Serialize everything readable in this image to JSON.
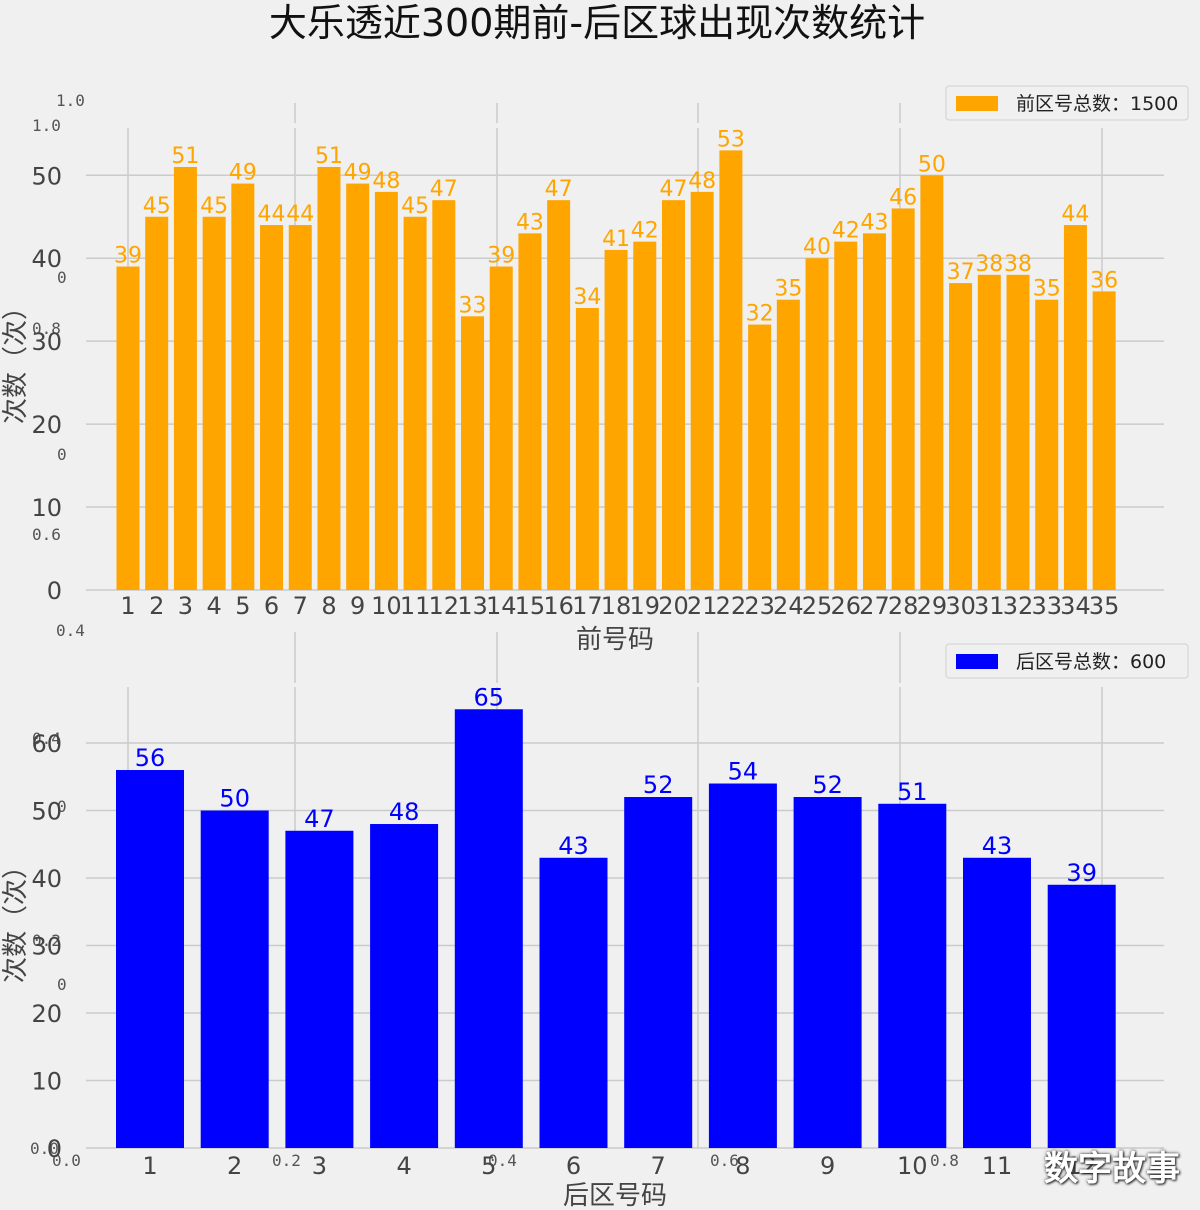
{
  "title": "大乐透近300期前-后区球出现次数统计",
  "watermark": "数字故事",
  "ghost_ticks": {
    "top": [
      "1.0",
      "1.0",
      "0",
      "0.8",
      "0",
      "0.6"
    ],
    "middle": [
      "0.4"
    ],
    "bottom_left": [
      "0.4",
      "0",
      "0.2",
      "0",
      "0.0",
      "0.0"
    ],
    "bottom_x": [
      "0.2",
      "0.4",
      "0.6",
      "0.8"
    ]
  },
  "colors": {
    "front": "#ffa500",
    "back": "#0000ff",
    "grid": "#cbcbcb",
    "axis_text": "#444444"
  },
  "chart_data": [
    {
      "type": "bar",
      "categories": [
        "1",
        "2",
        "3",
        "4",
        "5",
        "6",
        "7",
        "8",
        "9",
        "10",
        "11",
        "12",
        "13",
        "14",
        "15",
        "16",
        "17",
        "18",
        "19",
        "20",
        "21",
        "22",
        "23",
        "24",
        "25",
        "26",
        "27",
        "28",
        "29",
        "30",
        "31",
        "32",
        "33",
        "34",
        "35"
      ],
      "values": [
        39,
        45,
        51,
        45,
        49,
        44,
        44,
        51,
        49,
        48,
        45,
        47,
        33,
        39,
        43,
        47,
        34,
        41,
        42,
        47,
        48,
        53,
        32,
        35,
        40,
        42,
        43,
        46,
        50,
        37,
        38,
        38,
        35,
        44,
        36
      ],
      "xlabel": "前号码",
      "ylabel": "次数（次）",
      "yticks": [
        0,
        10,
        20,
        30,
        40,
        50
      ],
      "ylim": [
        0,
        55.7
      ],
      "legend": "前区号总数：1500",
      "legend_position": "top-right",
      "grid": true
    },
    {
      "type": "bar",
      "categories": [
        "1",
        "2",
        "3",
        "4",
        "5",
        "6",
        "7",
        "8",
        "9",
        "10",
        "11",
        "12"
      ],
      "values": [
        56,
        50,
        47,
        48,
        65,
        43,
        52,
        54,
        52,
        51,
        43,
        39
      ],
      "xlabel": "后区号码",
      "ylabel": "次数（次）",
      "yticks": [
        0,
        10,
        20,
        30,
        40,
        50,
        60
      ],
      "ylim": [
        0,
        68.3
      ],
      "legend": "后区号总数：600",
      "legend_position": "top-right",
      "grid": true
    }
  ]
}
